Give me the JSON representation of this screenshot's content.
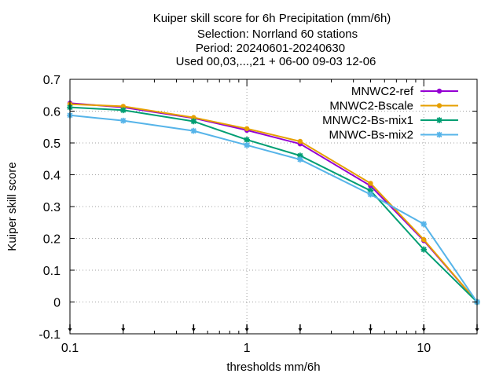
{
  "chart_data": {
    "type": "line",
    "title_lines": [
      "Kuiper skill score  for 6h Precipitation (mm/6h)",
      "Selection: Norrland     60 stations",
      "Period: 20240601-20240630",
      "Used 00,03,...,21 + 06-00 09-03 12-06"
    ],
    "xlabel": "thresholds mm/6h",
    "ylabel": "Kuiper skill score",
    "x_scale": "log",
    "xlim": [
      0.1,
      20
    ],
    "ylim": [
      -0.1,
      0.7
    ],
    "x_ticks": [
      0.1,
      1,
      10
    ],
    "x_tick_labels": [
      "0.1",
      "1",
      "10"
    ],
    "y_ticks": [
      -0.1,
      0,
      0.1,
      0.2,
      0.3,
      0.4,
      0.5,
      0.6,
      0.7
    ],
    "y_tick_labels": [
      "-0.1",
      "0",
      "0.1",
      "0.2",
      "0.3",
      "0.4",
      "0.5",
      "0.6",
      "0.7"
    ],
    "grid": true,
    "legend_position": "top-right",
    "threshold_markers": [
      0.1,
      0.2,
      0.5,
      1,
      2,
      5,
      10,
      20
    ],
    "x": [
      0.1,
      0.2,
      0.5,
      1,
      2,
      5,
      10,
      20
    ],
    "series": [
      {
        "name": "MNWC2-ref",
        "color": "#9400d3",
        "marker": "circle",
        "values": [
          0.625,
          0.612,
          0.578,
          0.54,
          0.497,
          0.365,
          0.193,
          0.0
        ]
      },
      {
        "name": "MNWC2-Bscale",
        "color": "#e69f00",
        "marker": "circle",
        "values": [
          0.622,
          0.615,
          0.58,
          0.545,
          0.505,
          0.373,
          0.196,
          0.0
        ]
      },
      {
        "name": "MNWC2-Bs-mix1",
        "color": "#009e73",
        "marker": "star",
        "values": [
          0.612,
          0.603,
          0.568,
          0.51,
          0.46,
          0.35,
          0.165,
          0.0
        ]
      },
      {
        "name": "MNWC-Bs-mix2",
        "color": "#56b4e9",
        "marker": "star",
        "values": [
          0.587,
          0.57,
          0.538,
          0.493,
          0.448,
          0.338,
          0.245,
          0.0
        ]
      }
    ]
  }
}
